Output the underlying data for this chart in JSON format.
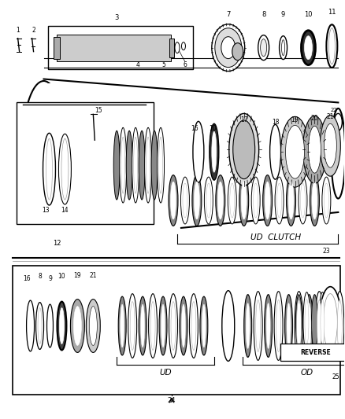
{
  "bg_color": "#ffffff",
  "line_color": "#000000",
  "fig_width": 4.38,
  "fig_height": 5.33,
  "dpi": 100,
  "ud_clutch_label": "UD  CLUTCH",
  "ud_label": "UD",
  "od_label": "OD",
  "reverse_label": "REVERSE"
}
